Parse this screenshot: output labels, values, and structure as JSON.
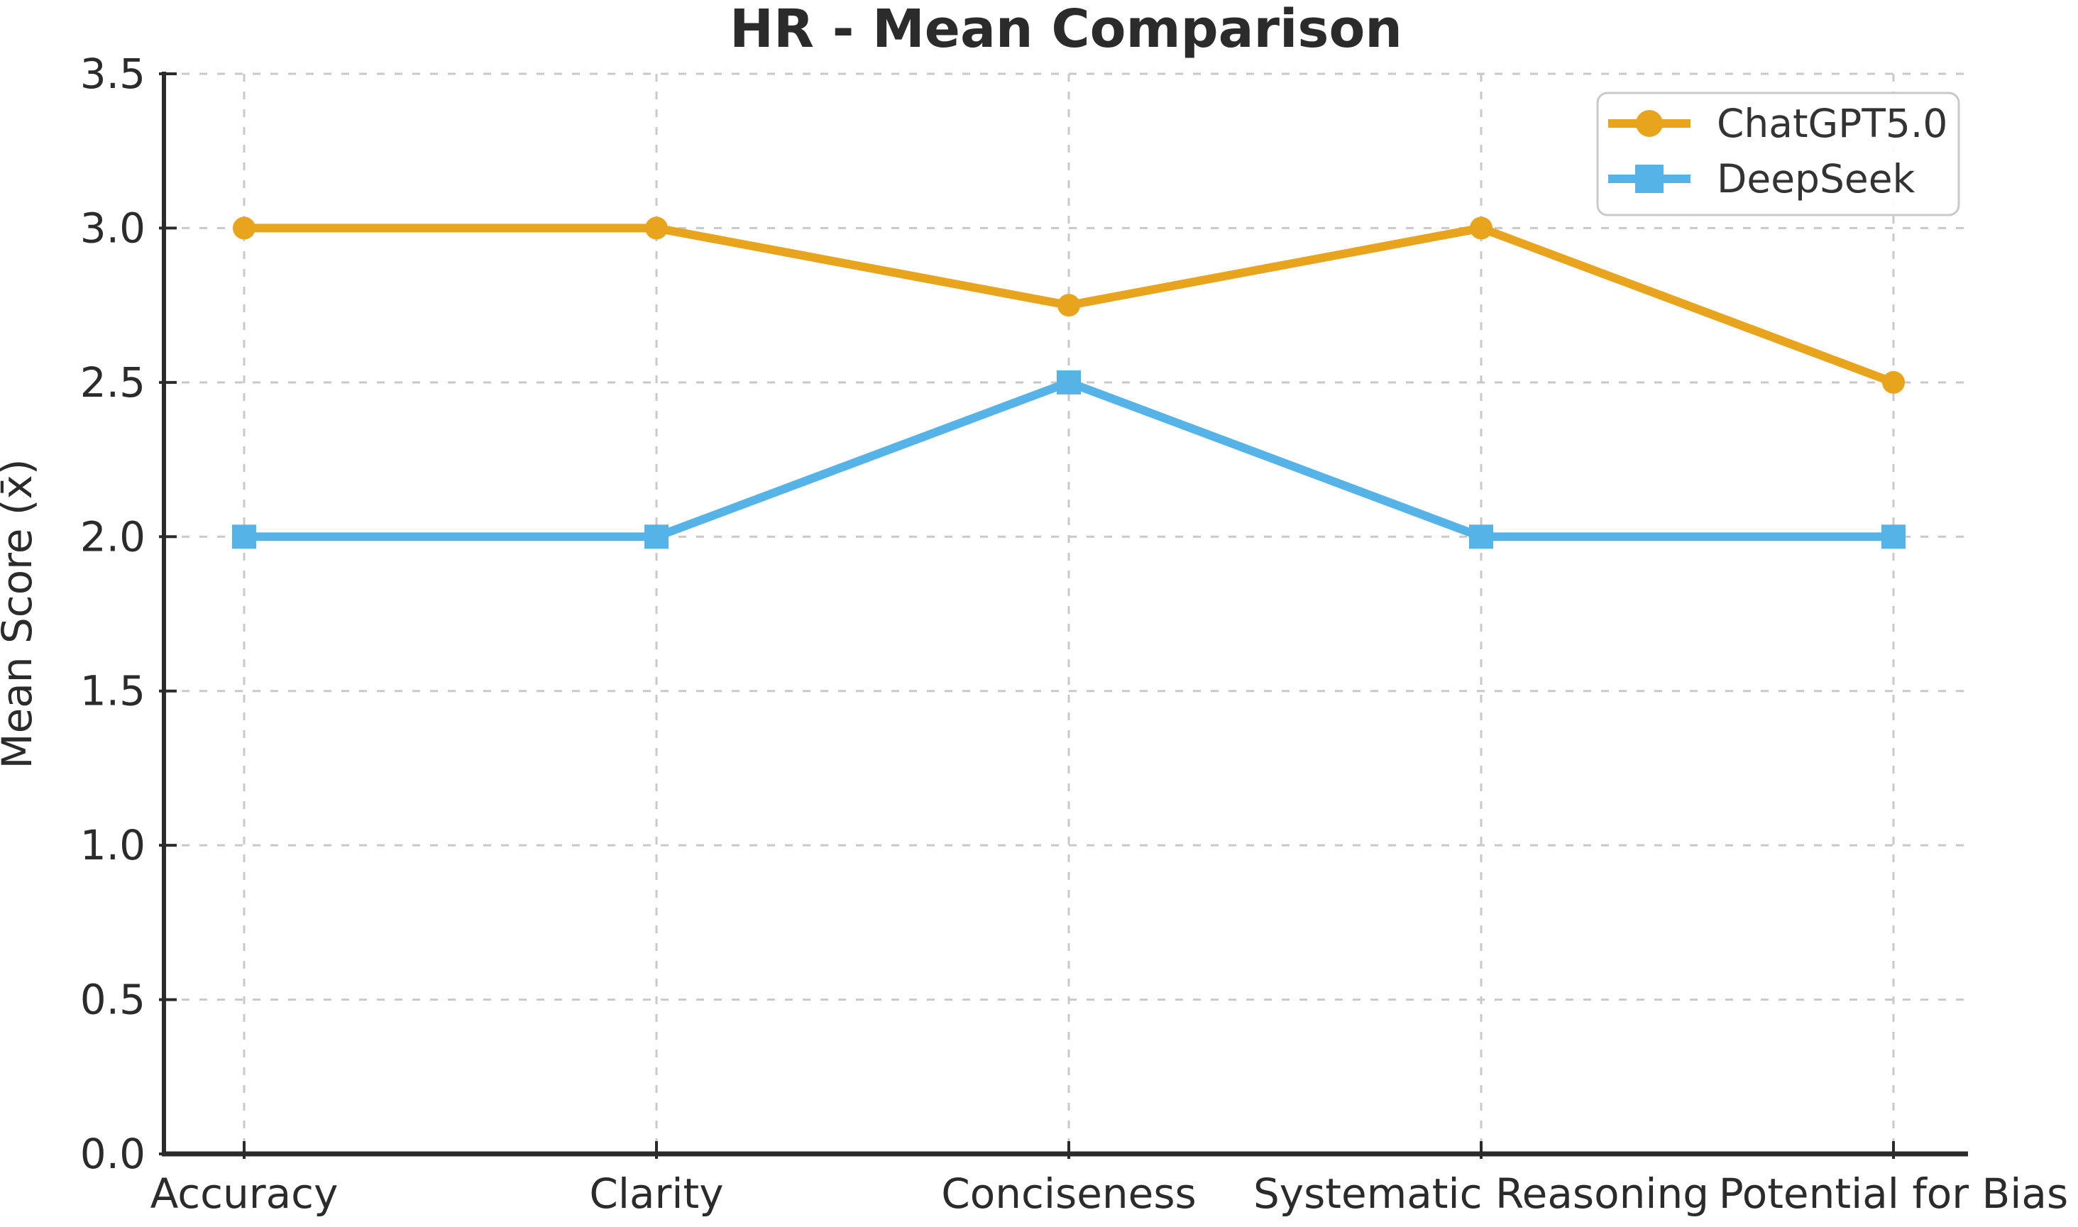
{
  "chart_data": {
    "type": "line",
    "title": "HR - Mean Comparison",
    "xlabel": "",
    "ylabel": "Mean Score (x̄)",
    "categories": [
      "Accuracy",
      "Clarity",
      "Conciseness",
      "Systematic Reasoning",
      "Potential for Bias"
    ],
    "series": [
      {
        "name": "ChatGPT5.0",
        "color": "#E8A41C",
        "marker": "circle",
        "values": [
          3.0,
          3.0,
          2.75,
          3.0,
          2.5
        ]
      },
      {
        "name": "DeepSeek",
        "color": "#56B3E8",
        "marker": "square",
        "values": [
          2.0,
          2.0,
          2.5,
          2.0,
          2.0
        ]
      }
    ],
    "ylim": [
      0.0,
      3.5
    ],
    "yticks": [
      0.0,
      0.5,
      1.0,
      1.5,
      2.0,
      2.5,
      3.0,
      3.5
    ],
    "ytick_label_format": "one_decimal",
    "grid": true,
    "grid_style": "dashed",
    "legend": {
      "position": "upper right",
      "entries": [
        "ChatGPT5.0",
        "DeepSeek"
      ]
    }
  },
  "style_colors": {
    "background": "#ffffff",
    "text": "#2b2b2b",
    "spine": "#2b2b2b",
    "grid": "#c9c9c9",
    "legend_border": "#c9c9c9",
    "legend_fill": "#ffffff"
  }
}
